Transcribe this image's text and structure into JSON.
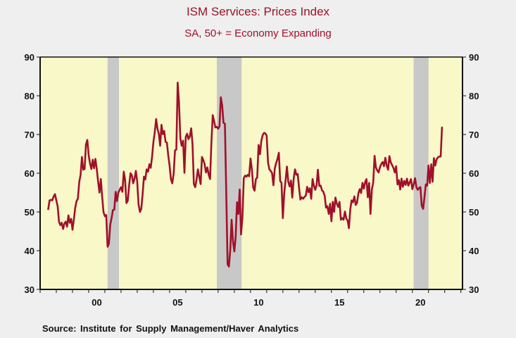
{
  "chart_data": {
    "type": "line",
    "title": "ISM Services: Prices Index",
    "subtitle": "SA, 50+ = Economy Expanding",
    "xlabel": "",
    "ylabel": "",
    "source": "Source:  Institute for Supply Management/Haver Analytics",
    "xlim": [
      1997.0,
      2023.1
    ],
    "ylim": [
      30,
      90
    ],
    "yticks": [
      30,
      40,
      50,
      60,
      70,
      80,
      90
    ],
    "ytick_labels": [
      "30",
      "40",
      "50",
      "60",
      "70",
      "80",
      "90"
    ],
    "xtick_years": [
      1997,
      1998,
      1999,
      2000,
      2001,
      2002,
      2003,
      2004,
      2005,
      2006,
      2007,
      2008,
      2009,
      2010,
      2011,
      2012,
      2013,
      2014,
      2015,
      2016,
      2017,
      2018,
      2019,
      2020,
      2021,
      2022,
      2023
    ],
    "xlabels": [
      {
        "year": 2000,
        "label": "00"
      },
      {
        "year": 2005,
        "label": "05"
      },
      {
        "year": 2010,
        "label": "10"
      },
      {
        "year": 2015,
        "label": "15"
      },
      {
        "year": 2020,
        "label": "20"
      }
    ],
    "axes": {
      "left": true,
      "right": true
    },
    "grid": false,
    "colors": {
      "plot_background": "#f8f8c8",
      "recession_band": "#c8c8c8",
      "line": "#a0102a",
      "title": "#a0102a"
    },
    "recessions": [
      {
        "start": 2001.17,
        "end": 2001.87
      },
      {
        "start": 2007.92,
        "end": 2009.45
      },
      {
        "start": 2020.08,
        "end": 2021.0
      }
    ],
    "series": [
      {
        "name": "ISM Services: Prices Index",
        "start": 1997.5,
        "frequency": "monthly",
        "values": [
          50.7,
          53.0,
          53.1,
          53.0,
          54.0,
          54.6,
          53.0,
          51.5,
          47.5,
          46.6,
          47.2,
          45.6,
          47.0,
          47.5,
          46.2,
          49.1,
          47.2,
          48.2,
          45.4,
          48.0,
          51.0,
          52.8,
          53.4,
          57.8,
          59.6,
          64.2,
          60.9,
          61.1,
          67.4,
          68.6,
          64.6,
          62.5,
          61.1,
          63.5,
          61.3,
          63.7,
          61.0,
          57.8,
          55.0,
          58.5,
          54.0,
          50.0,
          48.9,
          49.2,
          41.0,
          41.8,
          46.7,
          48.4,
          50.5,
          50.6,
          55.2,
          52.8,
          55.0,
          55.7,
          56.4,
          55.2,
          60.4,
          58.3,
          52.3,
          52.9,
          56.8,
          60.0,
          59.5,
          57.4,
          58.6,
          60.6,
          57.9,
          52.0,
          50.0,
          50.8,
          54.6,
          59.1,
          58.4,
          61.0,
          60.4,
          62.3,
          61.4,
          64.2,
          68.0,
          70.5,
          74.0,
          71.5,
          70.2,
          67.1,
          72.5,
          70.1,
          70.9,
          68.1,
          67.9,
          64.6,
          62.0,
          58.5,
          57.4,
          59.9,
          65.9,
          66.1,
          83.4,
          78.2,
          69.0,
          67.1,
          68.4,
          60.1,
          69.4,
          70.2,
          68.8,
          69.5,
          71.6,
          67.5,
          57.2,
          56.4,
          58.3,
          61.0,
          59.0,
          57.2,
          64.2,
          63.4,
          62.3,
          60.2,
          61.5,
          59.6,
          58.5,
          67.8,
          75.0,
          73.5,
          71.8,
          72.0,
          71.5,
          72.1,
          79.6,
          77.5,
          73.0,
          72.8,
          55.0,
          36.5,
          35.9,
          40.2,
          48.0,
          42.5,
          39.8,
          43.7,
          52.5,
          49.5,
          55.8,
          44.2,
          48.7,
          58.7,
          59.4,
          59.1,
          59.6,
          59.2,
          63.8,
          61.0,
          56.3,
          55.5,
          58.5,
          58.9,
          67.3,
          64.9,
          68.3,
          69.8,
          70.4,
          70.3,
          69.7,
          62.7,
          61.0,
          60.6,
          60.0,
          56.9,
          61.2,
          62.6,
          63.7,
          65.3,
          58.0,
          57.5,
          48.4,
          54.7,
          58.2,
          61.7,
          57.8,
          56.6,
          58.1,
          53.7,
          58.6,
          61.0,
          59.6,
          59.8,
          56.3,
          53.2,
          53.8,
          53.4,
          53.9,
          54.2,
          56.5,
          55.1,
          56.1,
          53.4,
          58.5,
          56.8,
          55.7,
          56.9,
          60.9,
          56.7,
          56.8,
          55.6,
          55.2,
          54.2,
          51.1,
          51.5,
          49.5,
          52.1,
          47.6,
          52.6,
          50.0,
          53.7,
          52.1,
          51.3,
          52.6,
          48.0,
          48.4,
          48.0,
          50.1,
          48.3,
          47.8,
          45.8,
          50.7,
          53.0,
          52.5,
          54.0,
          51.8,
          52.4,
          54.8,
          55.9,
          54.9,
          57.5,
          56.0,
          57.7,
          58.5,
          53.8,
          57.5,
          49.5,
          55.9,
          57.6,
          64.5,
          61.5,
          60.7,
          60.2,
          61.6,
          62.4,
          62.9,
          61.8,
          64.0,
          62.0,
          60.9,
          64.4,
          62.8,
          62.1,
          61.4,
          60.2,
          61.8,
          57.1,
          58.2,
          55.8,
          58.6,
          56.5,
          58.0,
          57.0,
          58.6,
          56.8,
          57.6,
          58.5,
          55.9,
          57.2,
          58.7,
          56.4,
          55.7,
          56.2,
          56.4,
          51.6,
          50.8,
          53.9,
          57.1,
          56.8,
          62.0,
          57.5,
          62.3,
          57.8,
          63.9,
          62.0,
          63.6,
          64.1,
          64.3,
          64.3,
          71.8
        ]
      }
    ]
  }
}
